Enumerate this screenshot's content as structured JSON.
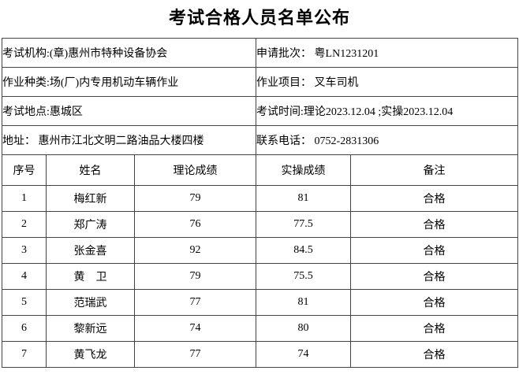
{
  "title": "考试合格人员名单公布",
  "info": {
    "rows": [
      {
        "left": "考试机构:(章)惠州市特种设备协会",
        "right": "申请批次： 粤LN1231201"
      },
      {
        "left": "作业种类:场(厂)内专用机动车辆作业",
        "right": "作业项目： 叉车司机"
      },
      {
        "left": "考试地点:惠城区",
        "right": "考试时间:理论2023.12.04 ;实操2023.12.04"
      },
      {
        "left": "地址： 惠州市江北文明二路油品大楼四楼",
        "right": "联系电话： 0752-2831306"
      }
    ]
  },
  "results": {
    "columns": [
      "序号",
      "姓名",
      "理论成绩",
      "实操成绩",
      "备注"
    ],
    "rows": [
      [
        "1",
        "梅红新",
        "79",
        "81",
        "合格"
      ],
      [
        "2",
        "郑广涛",
        "76",
        "77.5",
        "合格"
      ],
      [
        "3",
        "张金喜",
        "92",
        "84.5",
        "合格"
      ],
      [
        "4",
        "黄　卫",
        "79",
        "75.5",
        "合格"
      ],
      [
        "5",
        "范瑞武",
        "77",
        "81",
        "合格"
      ],
      [
        "6",
        "黎新远",
        "74",
        "80",
        "合格"
      ],
      [
        "7",
        "黄飞龙",
        "77",
        "74",
        "合格"
      ]
    ]
  },
  "colors": {
    "border": "#454545",
    "text": "#000000",
    "background": "#ffffff"
  }
}
